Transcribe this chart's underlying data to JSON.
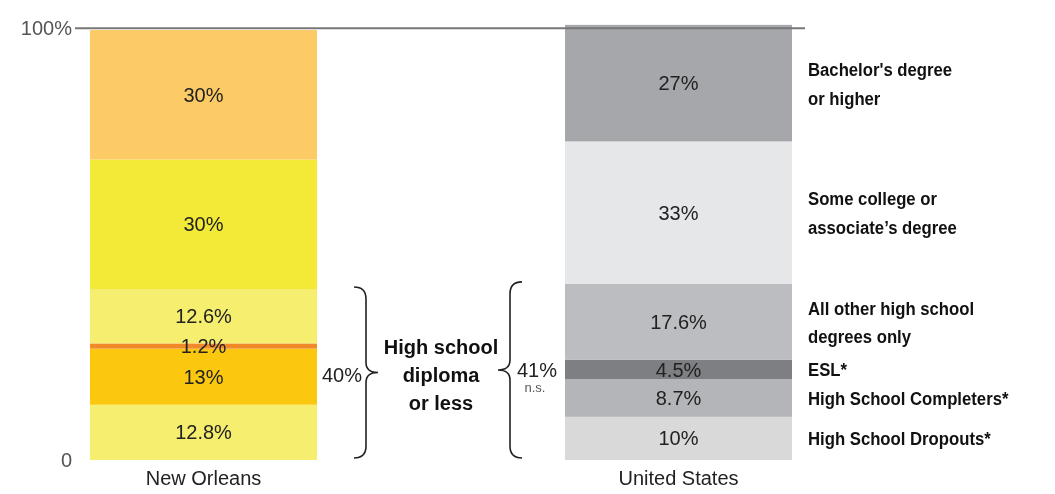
{
  "chart_data": {
    "type": "bar",
    "stacked": true,
    "categories": [
      "New Orleans",
      "United States"
    ],
    "ylim": [
      0,
      101
    ],
    "yticks": [
      {
        "value": 0,
        "label": "0"
      },
      {
        "value": 100,
        "label": "100%"
      }
    ],
    "ref_lines": [
      {
        "axis": "y",
        "value": 100,
        "color": "#777777"
      }
    ],
    "series": [
      {
        "name": "High School Dropouts*",
        "colors": [
          "#f5ee6e",
          "#d9d9da"
        ],
        "values": [
          12.8,
          10
        ],
        "value_labels": [
          "12.8%",
          "10%"
        ]
      },
      {
        "name": "High School Completers*",
        "colors": [
          "#fbc80f",
          "#b4b5b8"
        ],
        "values": [
          13,
          8.7
        ],
        "value_labels": [
          "13%",
          "8.7%"
        ]
      },
      {
        "name": "ESL*",
        "colors": [
          "#f0892a",
          "#7e7f82"
        ],
        "values": [
          1.2,
          4.5
        ],
        "value_labels": [
          "1.2%",
          "4.5%"
        ]
      },
      {
        "name": "All other high school\ndegrees only",
        "colors": [
          "#f5ee6e",
          "#bcbdc0"
        ],
        "values": [
          12.6,
          17.6
        ],
        "value_labels": [
          "12.6%",
          "17.6%"
        ]
      },
      {
        "name": "Some college or\nassociate’s degree",
        "colors": [
          "#f2ea37",
          "#e6e7e8"
        ],
        "values": [
          30,
          33
        ],
        "value_labels": [
          "30%",
          "33%"
        ]
      },
      {
        "name": "Bachelor's degree\nor higher",
        "colors": [
          "#fdcb65",
          "#a6a7ab"
        ],
        "values": [
          30,
          27
        ],
        "value_labels": [
          "30%",
          "27%"
        ]
      }
    ],
    "annotations": [
      "40%",
      "High school\ndiploma\nor less",
      "41%",
      "n.s."
    ]
  }
}
